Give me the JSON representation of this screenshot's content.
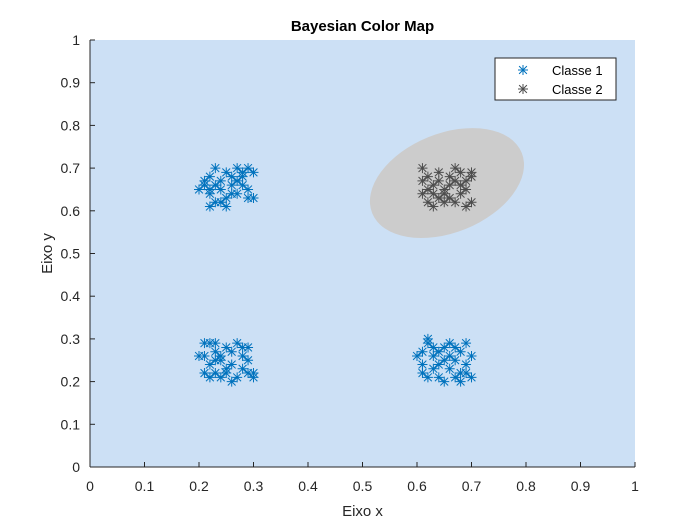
{
  "chart_data": {
    "type": "scatter",
    "title": "Bayesian Color Map",
    "xlabel": "Eixo x",
    "ylabel": "Eixo y",
    "xlim": [
      0,
      1
    ],
    "ylim": [
      0,
      1
    ],
    "xticks": [
      0,
      0.1,
      0.2,
      0.3,
      0.4,
      0.5,
      0.6,
      0.7,
      0.8,
      0.9,
      1
    ],
    "yticks": [
      0,
      0.1,
      0.2,
      0.3,
      0.4,
      0.5,
      0.6,
      0.7,
      0.8,
      0.9,
      1
    ],
    "xtick_labels": [
      "0",
      "0.1",
      "0.2",
      "0.3",
      "0.4",
      "0.5",
      "0.6",
      "0.7",
      "0.8",
      "0.9",
      "1"
    ],
    "ytick_labels": [
      "0",
      "0.1",
      "0.2",
      "0.3",
      "0.4",
      "0.5",
      "0.6",
      "0.7",
      "0.8",
      "0.9",
      "1"
    ],
    "grid": false,
    "legend_position": "top-right",
    "background_region": {
      "class": "Classe 1",
      "color": "#cce0f5"
    },
    "decision_region": {
      "class": "Classe 2",
      "shape": "ellipse",
      "color": "#cccccc",
      "center": [
        0.655,
        0.665
      ],
      "radii": [
        0.148,
        0.116
      ],
      "rotation_deg": -22
    },
    "series": [
      {
        "name": "Classe 1",
        "marker": "*",
        "color": "#0072bd",
        "points": [
          [
            0.21,
            0.66
          ],
          [
            0.22,
            0.68
          ],
          [
            0.23,
            0.7
          ],
          [
            0.24,
            0.67
          ],
          [
            0.25,
            0.69
          ],
          [
            0.26,
            0.66
          ],
          [
            0.27,
            0.7
          ],
          [
            0.28,
            0.68
          ],
          [
            0.29,
            0.7
          ],
          [
            0.3,
            0.69
          ],
          [
            0.22,
            0.64
          ],
          [
            0.23,
            0.62
          ],
          [
            0.24,
            0.65
          ],
          [
            0.25,
            0.63
          ],
          [
            0.26,
            0.68
          ],
          [
            0.27,
            0.64
          ],
          [
            0.28,
            0.66
          ],
          [
            0.29,
            0.63
          ],
          [
            0.3,
            0.63
          ],
          [
            0.22,
            0.61
          ],
          [
            0.25,
            0.61
          ],
          [
            0.21,
            0.67
          ],
          [
            0.24,
            0.62
          ],
          [
            0.26,
            0.64
          ],
          [
            0.2,
            0.65
          ],
          [
            0.23,
            0.66
          ],
          [
            0.28,
            0.69
          ],
          [
            0.29,
            0.65
          ],
          [
            0.27,
            0.67
          ],
          [
            0.22,
            0.65
          ],
          [
            0.21,
            0.26
          ],
          [
            0.22,
            0.29
          ],
          [
            0.23,
            0.27
          ],
          [
            0.24,
            0.25
          ],
          [
            0.25,
            0.23
          ],
          [
            0.26,
            0.27
          ],
          [
            0.27,
            0.29
          ],
          [
            0.28,
            0.26
          ],
          [
            0.29,
            0.28
          ],
          [
            0.3,
            0.22
          ],
          [
            0.21,
            0.22
          ],
          [
            0.22,
            0.21
          ],
          [
            0.23,
            0.22
          ],
          [
            0.24,
            0.21
          ],
          [
            0.25,
            0.22
          ],
          [
            0.26,
            0.24
          ],
          [
            0.27,
            0.21
          ],
          [
            0.28,
            0.23
          ],
          [
            0.29,
            0.25
          ],
          [
            0.3,
            0.21
          ],
          [
            0.2,
            0.26
          ],
          [
            0.22,
            0.24
          ],
          [
            0.23,
            0.29
          ],
          [
            0.24,
            0.26
          ],
          [
            0.21,
            0.29
          ],
          [
            0.25,
            0.28
          ],
          [
            0.28,
            0.28
          ],
          [
            0.29,
            0.22
          ],
          [
            0.23,
            0.25
          ],
          [
            0.26,
            0.2
          ],
          [
            0.61,
            0.27
          ],
          [
            0.62,
            0.29
          ],
          [
            0.63,
            0.26
          ],
          [
            0.64,
            0.24
          ],
          [
            0.65,
            0.28
          ],
          [
            0.66,
            0.29
          ],
          [
            0.67,
            0.25
          ],
          [
            0.68,
            0.27
          ],
          [
            0.69,
            0.29
          ],
          [
            0.7,
            0.26
          ],
          [
            0.61,
            0.22
          ],
          [
            0.62,
            0.21
          ],
          [
            0.63,
            0.23
          ],
          [
            0.64,
            0.21
          ],
          [
            0.65,
            0.2
          ],
          [
            0.66,
            0.23
          ],
          [
            0.67,
            0.21
          ],
          [
            0.68,
            0.22
          ],
          [
            0.69,
            0.24
          ],
          [
            0.7,
            0.21
          ],
          [
            0.6,
            0.26
          ],
          [
            0.62,
            0.3
          ],
          [
            0.64,
            0.27
          ],
          [
            0.66,
            0.26
          ],
          [
            0.67,
            0.28
          ],
          [
            0.69,
            0.22
          ],
          [
            0.61,
            0.24
          ],
          [
            0.63,
            0.28
          ],
          [
            0.68,
            0.2
          ],
          [
            0.65,
            0.25
          ]
        ]
      },
      {
        "name": "Classe 2",
        "marker": "*",
        "color": "#4d4d4d",
        "points": [
          [
            0.61,
            0.7
          ],
          [
            0.62,
            0.68
          ],
          [
            0.63,
            0.66
          ],
          [
            0.64,
            0.67
          ],
          [
            0.65,
            0.64
          ],
          [
            0.66,
            0.68
          ],
          [
            0.67,
            0.7
          ],
          [
            0.68,
            0.69
          ],
          [
            0.69,
            0.67
          ],
          [
            0.7,
            0.69
          ],
          [
            0.61,
            0.64
          ],
          [
            0.62,
            0.62
          ],
          [
            0.63,
            0.61
          ],
          [
            0.64,
            0.63
          ],
          [
            0.65,
            0.65
          ],
          [
            0.66,
            0.63
          ],
          [
            0.67,
            0.62
          ],
          [
            0.68,
            0.64
          ],
          [
            0.69,
            0.65
          ],
          [
            0.7,
            0.62
          ],
          [
            0.62,
            0.65
          ],
          [
            0.64,
            0.69
          ],
          [
            0.66,
            0.66
          ],
          [
            0.68,
            0.66
          ],
          [
            0.7,
            0.68
          ],
          [
            0.61,
            0.67
          ],
          [
            0.63,
            0.64
          ],
          [
            0.67,
            0.67
          ],
          [
            0.69,
            0.61
          ],
          [
            0.65,
            0.62
          ]
        ]
      }
    ]
  }
}
